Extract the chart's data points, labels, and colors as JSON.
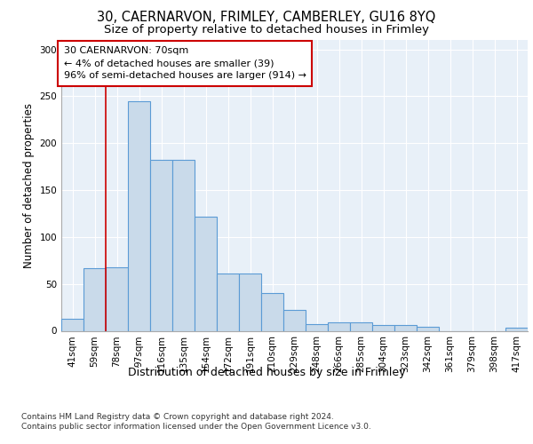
{
  "title1": "30, CAERNARVON, FRIMLEY, CAMBERLEY, GU16 8YQ",
  "title2": "Size of property relative to detached houses in Frimley",
  "xlabel": "Distribution of detached houses by size in Frimley",
  "ylabel": "Number of detached properties",
  "categories": [
    "41sqm",
    "59sqm",
    "78sqm",
    "97sqm",
    "116sqm",
    "135sqm",
    "154sqm",
    "172sqm",
    "191sqm",
    "210sqm",
    "229sqm",
    "248sqm",
    "266sqm",
    "285sqm",
    "304sqm",
    "323sqm",
    "342sqm",
    "361sqm",
    "379sqm",
    "398sqm",
    "417sqm"
  ],
  "values": [
    13,
    67,
    68,
    245,
    182,
    182,
    122,
    61,
    61,
    40,
    22,
    7,
    9,
    9,
    6,
    6,
    4,
    0,
    0,
    0,
    3
  ],
  "bar_color": "#c9daea",
  "bar_edge_color": "#5b9bd5",
  "bar_edge_width": 0.8,
  "vline_x": 1.0,
  "vline_color": "#cc0000",
  "annotation_box_text": "30 CAERNARVON: 70sqm\n← 4% of detached houses are smaller (39)\n96% of semi-detached houses are larger (914) →",
  "annotation_box_edge_color": "#cc0000",
  "footnote1": "Contains HM Land Registry data © Crown copyright and database right 2024.",
  "footnote2": "Contains public sector information licensed under the Open Government Licence v3.0.",
  "ylim": [
    0,
    310
  ],
  "plot_bg_color": "#e8f0f8",
  "title1_fontsize": 10.5,
  "title2_fontsize": 9.5,
  "xlabel_fontsize": 9,
  "ylabel_fontsize": 8.5,
  "tick_fontsize": 7.5,
  "annotation_fontsize": 8,
  "footnote_fontsize": 6.5
}
